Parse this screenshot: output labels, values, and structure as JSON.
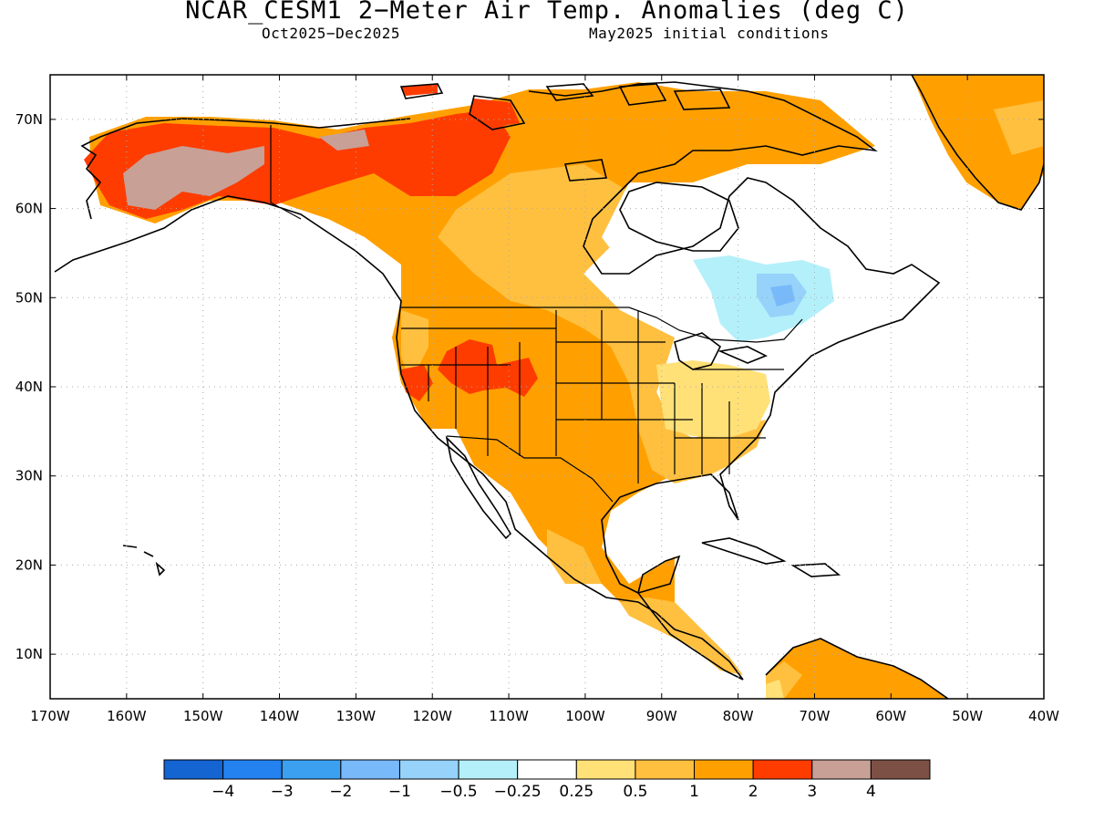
{
  "title": "NCAR_CESM1 2−Meter Air Temp. Anomalies (deg C)",
  "subtitle_left": "Oct2025−Dec2025",
  "subtitle_right": "May2025 initial conditions",
  "lon_ticks": [
    "170W",
    "160W",
    "150W",
    "140W",
    "130W",
    "120W",
    "110W",
    "100W",
    "90W",
    "80W",
    "70W",
    "60W",
    "50W",
    "40W"
  ],
  "lat_ticks": [
    "70N",
    "60N",
    "50N",
    "40N",
    "30N",
    "20N",
    "10N"
  ],
  "colorbar": {
    "colors": [
      "#1464d2",
      "#2382f0",
      "#3ca0f0",
      "#78b9fa",
      "#96d2fa",
      "#b4f0fa",
      "#ffffff",
      "#ffe178",
      "#ffc040",
      "#ffa000",
      "#ff3c00",
      "#c8a096",
      "#7d5046"
    ],
    "labels": [
      "−4",
      "−3",
      "−2",
      "−1",
      "−0.5",
      "−0.25",
      "0.25",
      "0.5",
      "1",
      "2",
      "3",
      "4"
    ]
  },
  "colors": {
    "gt_025": "#ffe178",
    "gt_05": "#ffc040",
    "gt_1": "#ffa000",
    "gt_2": "#ff3c00",
    "gt_3": "#c8a096",
    "lt_025": "#b4f0fa",
    "lt_05": "#96d2fa",
    "lt_1": "#78b9fa",
    "land_outline": "#000000"
  }
}
